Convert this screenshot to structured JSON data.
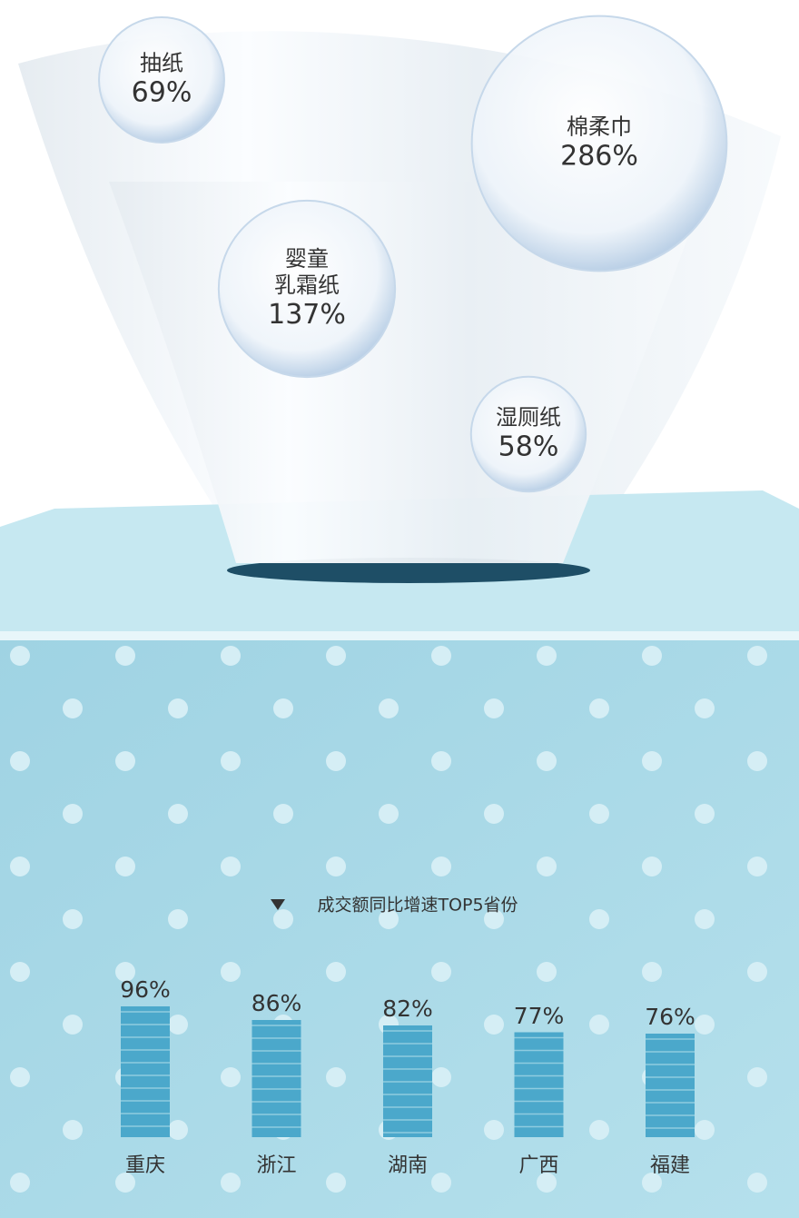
{
  "chart_data": [
    {
      "type": "bubble",
      "categories": [
        "抽纸",
        "棉柔巾",
        "婴童\n乳霜纸",
        "湿厕纸"
      ],
      "values": [
        69,
        286,
        137,
        58
      ],
      "value_labels": [
        "69%",
        "286%",
        "137%",
        "58%"
      ]
    },
    {
      "type": "bar",
      "title": "成交额同比增速TOP5省份",
      "categories": [
        "重庆",
        "浙江",
        "湖南",
        "广西",
        "福建"
      ],
      "values": [
        96,
        86,
        82,
        77,
        76
      ],
      "value_labels": [
        "96%",
        "86%",
        "82%",
        "77%",
        "76%"
      ],
      "color": "#4ba8cb"
    }
  ]
}
